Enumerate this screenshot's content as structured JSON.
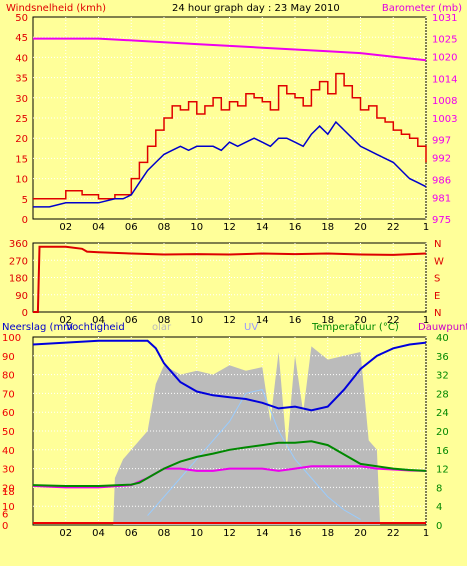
{
  "header": {
    "title": "24 hour graph day : 23 May 2010",
    "left_label": "Windsnelheid (kmh)",
    "right_label": "Barometer (mb)"
  },
  "middle": {
    "right_label": "N W S E N"
  },
  "bottom": {
    "labels": {
      "rain": "Neerslag (mm",
      "humidity": "Vochtigheid",
      "solar": "olar",
      "uv": "UV",
      "temp": "Temperatuur (°C)",
      "dew": "Dauwpunt"
    }
  },
  "colors": {
    "background": "#ffff99",
    "wind_gust": "#e00000",
    "wind_avg": "#0000cc",
    "barometer": "#ee00ee",
    "direction": "#dd0000",
    "humidity": "#0000dd",
    "temperature": "#008800",
    "dewpoint": "#ee00ee",
    "solar": "#bbbbbb",
    "uv": "#99ccff",
    "rain": "#ee0000"
  },
  "chart_data": [
    {
      "type": "line",
      "title": "24 hour graph day : 23 May 2010",
      "ylabel": "Windsnelheid (kmh)",
      "y2label": "Barometer (mb)",
      "ylim": [
        0,
        50
      ],
      "yticks": [
        0,
        5,
        10,
        15,
        20,
        25,
        30,
        35,
        40,
        45,
        50
      ],
      "y2lim": [
        975,
        1031
      ],
      "y2ticks": [
        975,
        981,
        986,
        992,
        997,
        1003,
        1008,
        1014,
        1020,
        1025,
        1031
      ],
      "xlim": [
        0,
        24
      ],
      "xticks": [
        "02",
        "04",
        "06",
        "08",
        "10",
        "12",
        "14",
        "16",
        "18",
        "20",
        "22",
        "1"
      ],
      "grid": true,
      "series": [
        {
          "axis": "left",
          "x": [
            0,
            1,
            2,
            3,
            4,
            5,
            5.5,
            6,
            6.5,
            7,
            7.5,
            8,
            8.5,
            9,
            9.5,
            10,
            10.5,
            11,
            11.5,
            12,
            12.5,
            13,
            13.5,
            14,
            14.5,
            15,
            15.5,
            16,
            16.5,
            17,
            17.5,
            18,
            18.5,
            19,
            19.5,
            20,
            20.5,
            21,
            21.5,
            22,
            22.5,
            23,
            23.5,
            24
          ],
          "values": [
            5,
            5,
            7,
            6,
            5,
            6,
            6,
            10,
            14,
            18,
            22,
            25,
            28,
            27,
            29,
            26,
            28,
            30,
            27,
            29,
            28,
            31,
            30,
            29,
            27,
            33,
            31,
            30,
            28,
            32,
            34,
            31,
            36,
            33,
            30,
            27,
            28,
            25,
            24,
            22,
            21,
            20,
            18,
            14
          ]
        },
        {
          "axis": "left",
          "x": [
            0,
            1,
            2,
            3,
            4,
            5,
            5.5,
            6,
            6.5,
            7,
            7.5,
            8,
            8.5,
            9,
            9.5,
            10,
            10.5,
            11,
            11.5,
            12,
            12.5,
            13,
            13.5,
            14,
            14.5,
            15,
            15.5,
            16,
            16.5,
            17,
            17.5,
            18,
            18.5,
            19,
            19.5,
            20,
            20.5,
            21,
            21.5,
            22,
            22.5,
            23,
            23.5,
            24
          ],
          "values": [
            3,
            3,
            4,
            4,
            4,
            5,
            5,
            6,
            9,
            12,
            14,
            16,
            17,
            18,
            17,
            18,
            18,
            18,
            17,
            19,
            18,
            19,
            20,
            19,
            18,
            20,
            20,
            19,
            18,
            21,
            23,
            21,
            24,
            22,
            20,
            18,
            17,
            16,
            15,
            14,
            12,
            10,
            9,
            8
          ]
        },
        {
          "axis": "right",
          "x": [
            0,
            2,
            4,
            6,
            8,
            10,
            12,
            14,
            16,
            18,
            20,
            22,
            24
          ],
          "values": [
            1025,
            1025,
            1025,
            1024.5,
            1024,
            1023.5,
            1023,
            1022.5,
            1022,
            1021.5,
            1021,
            1020,
            1019
          ]
        }
      ]
    },
    {
      "type": "line",
      "ylabel": "",
      "ylim": [
        0,
        360
      ],
      "yticks": [
        0,
        90,
        180,
        270,
        360
      ],
      "y2ticks": [
        "N",
        "W",
        "S",
        "E",
        "N"
      ],
      "xlim": [
        0,
        24
      ],
      "xticks": [
        "02",
        "04",
        "06",
        "08",
        "10",
        "12",
        "14",
        "16",
        "18",
        "20",
        "22",
        "1"
      ],
      "grid": true,
      "series": [
        {
          "x": [
            0,
            0.3,
            0.4,
            1,
            2,
            3,
            3.3,
            4,
            6,
            8,
            10,
            12,
            14,
            16,
            18,
            20,
            22,
            24
          ],
          "values": [
            0,
            0,
            340,
            340,
            340,
            330,
            315,
            312,
            305,
            300,
            302,
            300,
            305,
            302,
            305,
            300,
            298,
            305
          ]
        }
      ]
    },
    {
      "type": "line",
      "ylabel": "Neerslag (mm",
      "y2label": "Temperatuur (°C)",
      "ylim": [
        0,
        100
      ],
      "yticks": [
        0,
        6,
        10,
        18,
        20,
        30,
        40,
        50,
        60,
        70,
        80,
        90,
        100
      ],
      "ytick_labels": [
        "0",
        "6",
        "10",
        "18",
        "20",
        "30",
        "40",
        "50",
        "60",
        "70",
        "80",
        "90",
        "100"
      ],
      "y2lim": [
        0,
        40
      ],
      "y2ticks": [
        0,
        4,
        8,
        12,
        16,
        20,
        24,
        28,
        32,
        36,
        40
      ],
      "xlim": [
        0,
        24
      ],
      "xticks": [
        "02",
        "04",
        "06",
        "08",
        "10",
        "12",
        "14",
        "16",
        "18",
        "20",
        "22",
        "1"
      ],
      "grid": true,
      "series": [
        {
          "name": "Vochtigheid",
          "axis": "left",
          "x": [
            0,
            2,
            4,
            6,
            7,
            7.5,
            8,
            9,
            10,
            11,
            12,
            13,
            14,
            15,
            16,
            17,
            18,
            19,
            20,
            21,
            22,
            23,
            24
          ],
          "values": [
            96,
            97,
            98,
            98,
            98,
            94,
            86,
            76,
            71,
            69,
            68,
            67,
            65,
            62,
            63,
            61,
            63,
            72,
            83,
            90,
            94,
            96,
            97
          ]
        },
        {
          "name": "Temperatuur",
          "axis": "right",
          "x": [
            0,
            2,
            4,
            6,
            6.5,
            7,
            8,
            9,
            10,
            11,
            12,
            13,
            14,
            15,
            16,
            17,
            18,
            19,
            20,
            21,
            22,
            23,
            24
          ],
          "values": [
            8.5,
            8.3,
            8.3,
            8.6,
            9,
            10,
            12,
            13.5,
            14.5,
            15.2,
            16,
            16.5,
            17,
            17.5,
            17.5,
            17.8,
            17,
            15,
            13,
            12.5,
            12,
            11.7,
            11.5
          ]
        },
        {
          "name": "Dauwpunt",
          "axis": "right",
          "x": [
            0,
            2,
            4,
            6,
            7,
            8,
            9,
            10,
            11,
            12,
            13,
            14,
            15,
            16,
            17,
            18,
            19,
            20,
            21,
            22,
            23,
            24
          ],
          "values": [
            8.3,
            8,
            8,
            8.5,
            10,
            12,
            12,
            11.5,
            11.5,
            12,
            12,
            12,
            11.5,
            12,
            12.5,
            12.5,
            12.5,
            12.5,
            12,
            11.8,
            11.6,
            11.5
          ]
        },
        {
          "name": "UV",
          "axis": "left",
          "x": [
            7,
            8,
            9,
            10,
            11,
            12,
            13,
            14,
            15,
            16,
            17,
            18,
            19,
            20
          ],
          "values": [
            5,
            15,
            25,
            35,
            45,
            55,
            70,
            72,
            50,
            35,
            25,
            15,
            8,
            3
          ]
        },
        {
          "name": "Solar",
          "axis": "left",
          "x": [
            0,
            4.9,
            5.0,
            5.5,
            6,
            6.5,
            7,
            7.5,
            8,
            9,
            10,
            11,
            12,
            13,
            14,
            14.5,
            15,
            15.5,
            16,
            16.5,
            17,
            18,
            19,
            20,
            20.5,
            21,
            21.2,
            24
          ],
          "values": [
            0,
            0,
            25,
            35,
            40,
            45,
            50,
            75,
            85,
            80,
            82,
            80,
            85,
            82,
            84,
            55,
            92,
            40,
            90,
            60,
            95,
            88,
            90,
            92,
            45,
            40,
            0,
            0
          ]
        },
        {
          "name": "Neerslag",
          "axis": "left",
          "x": [
            0,
            24
          ],
          "values": [
            0,
            0
          ]
        }
      ]
    }
  ]
}
